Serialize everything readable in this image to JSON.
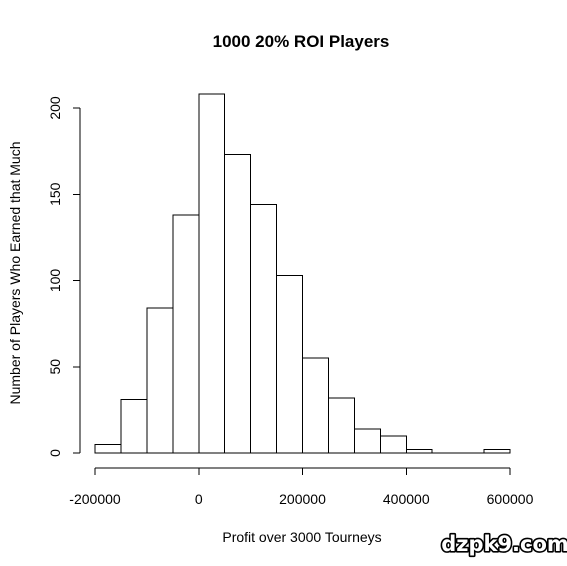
{
  "chart_data": {
    "type": "bar",
    "title": "1000 20% ROI Players",
    "xlabel": "Profit over 3000 Tourneys",
    "ylabel": "Number of Players Who Earned that Much",
    "bin_width": 50000,
    "bins": [
      {
        "start": -200000,
        "end": -150000,
        "count": 5
      },
      {
        "start": -150000,
        "end": -100000,
        "count": 31
      },
      {
        "start": -100000,
        "end": -50000,
        "count": 84
      },
      {
        "start": -50000,
        "end": 0,
        "count": 138
      },
      {
        "start": 0,
        "end": 50000,
        "count": 208
      },
      {
        "start": 50000,
        "end": 100000,
        "count": 173
      },
      {
        "start": 100000,
        "end": 150000,
        "count": 144
      },
      {
        "start": 150000,
        "end": 200000,
        "count": 103
      },
      {
        "start": 200000,
        "end": 250000,
        "count": 55
      },
      {
        "start": 250000,
        "end": 300000,
        "count": 32
      },
      {
        "start": 300000,
        "end": 350000,
        "count": 14
      },
      {
        "start": 350000,
        "end": 400000,
        "count": 10
      },
      {
        "start": 400000,
        "end": 450000,
        "count": 2
      },
      {
        "start": 450000,
        "end": 500000,
        "count": 0
      },
      {
        "start": 500000,
        "end": 550000,
        "count": 0
      },
      {
        "start": 550000,
        "end": 600000,
        "count": 2
      }
    ],
    "xlim": [
      -200000,
      600000
    ],
    "ylim": [
      0,
      210
    ],
    "xticks": [
      -200000,
      0,
      200000,
      400000,
      600000
    ],
    "xtick_labels": [
      "-200000",
      "0",
      "200000",
      "400000",
      "600000"
    ],
    "yticks": [
      0,
      50,
      100,
      150,
      200
    ],
    "ytick_labels": [
      "0",
      "50",
      "100",
      "150",
      "200"
    ],
    "grid": false,
    "legend": "none",
    "colors": {
      "bar_fill": "#ffffff",
      "bar_stroke": "#000000",
      "axis": "#000000"
    }
  },
  "watermark": "dzpk9.com"
}
